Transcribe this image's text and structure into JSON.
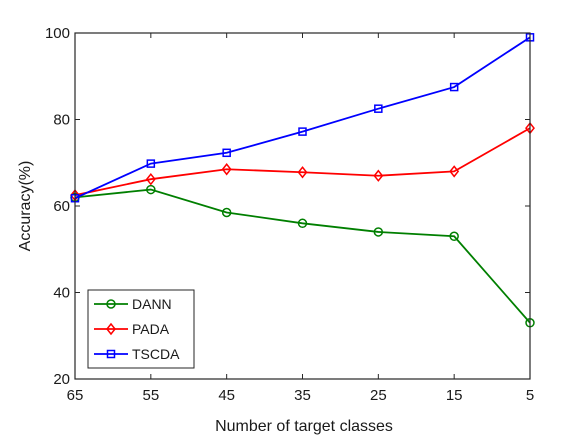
{
  "chart_data": {
    "type": "line",
    "title": "",
    "xlabel": "Number of target classes",
    "ylabel": "Accuracy(%)",
    "categories": [
      "65",
      "55",
      "45",
      "35",
      "25",
      "15",
      "5"
    ],
    "ylim": [
      20,
      100
    ],
    "yticks": [
      "20",
      "40",
      "60",
      "80",
      "100"
    ],
    "grid": false,
    "legend_position": "bottom-left",
    "series": [
      {
        "name": "DANN",
        "color": "#007f00",
        "marker": "circle",
        "values": [
          62.0,
          63.8,
          58.5,
          56.0,
          54.0,
          53.0,
          33.0
        ]
      },
      {
        "name": "PADA",
        "color": "#ff0000",
        "marker": "diamond",
        "values": [
          62.5,
          66.2,
          68.5,
          67.8,
          67.0,
          68.0,
          78.0
        ]
      },
      {
        "name": "TSCDA",
        "color": "#0000ff",
        "marker": "square",
        "values": [
          61.8,
          69.8,
          72.3,
          77.2,
          82.5,
          87.5,
          99.0
        ]
      }
    ]
  }
}
